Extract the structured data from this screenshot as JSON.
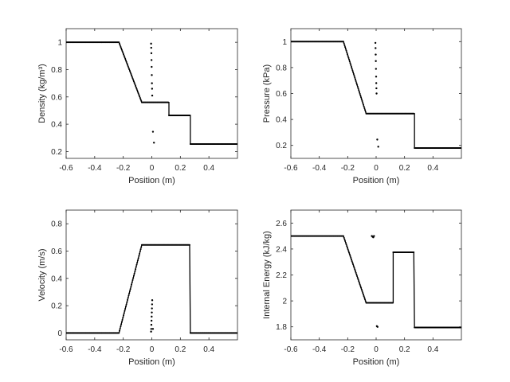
{
  "chart_data": [
    {
      "type": "line",
      "title": "",
      "xlabel": "Position (m)",
      "ylabel": "Density (kg/m³)",
      "xlim": [
        -0.6,
        0.6
      ],
      "ylim": [
        0.15,
        1.1
      ],
      "xticks": [
        -0.6,
        -0.4,
        -0.2,
        0,
        0.2,
        0.4
      ],
      "yticks": [
        0.2,
        0.4,
        0.6,
        0.8,
        1
      ],
      "xtick_labels": [
        "-0.6",
        "-0.4",
        "-0.2",
        "0",
        "0.2",
        "0.4"
      ],
      "ytick_labels": [
        "0.2",
        "0.4",
        "0.6",
        "0.8",
        "1"
      ],
      "series": [
        {
          "style": "line",
          "x": [
            -0.6,
            -0.23,
            -0.07,
            0.12,
            0.12,
            0.27,
            0.27,
            0.6
          ],
          "y": [
            1.0,
            1.0,
            0.56,
            0.56,
            0.465,
            0.465,
            0.255,
            0.255
          ]
        },
        {
          "style": "dots",
          "x": [
            -0.005,
            -0.004,
            -0.003,
            -0.002,
            -0.001,
            0.0,
            0.001,
            0.002,
            0.003,
            0.008,
            0.015
          ],
          "y": [
            0.99,
            0.96,
            0.92,
            0.87,
            0.82,
            0.76,
            0.7,
            0.66,
            0.61,
            0.345,
            0.265
          ]
        }
      ]
    },
    {
      "type": "line",
      "title": "",
      "xlabel": "Position (m)",
      "ylabel": "Pressure (kPa)",
      "xlim": [
        -0.6,
        0.6
      ],
      "ylim": [
        0.1,
        1.1
      ],
      "xticks": [
        -0.6,
        -0.4,
        -0.2,
        0,
        0.2,
        0.4
      ],
      "yticks": [
        0.2,
        0.4,
        0.6,
        0.8,
        1
      ],
      "xtick_labels": [
        "-0.6",
        "-0.4",
        "-0.2",
        "0",
        "0.2",
        "0.4"
      ],
      "ytick_labels": [
        "0.2",
        "0.4",
        "0.6",
        "0.8",
        "1"
      ],
      "series": [
        {
          "style": "line",
          "x": [
            -0.6,
            -0.23,
            -0.07,
            0.27,
            0.27,
            0.6
          ],
          "y": [
            1.0,
            1.0,
            0.445,
            0.445,
            0.18,
            0.18
          ]
        },
        {
          "style": "dots",
          "x": [
            -0.005,
            -0.004,
            -0.003,
            -0.002,
            -0.001,
            0.0,
            0.001,
            0.002,
            0.003,
            0.008,
            0.015
          ],
          "y": [
            0.99,
            0.95,
            0.9,
            0.85,
            0.79,
            0.73,
            0.68,
            0.64,
            0.6,
            0.245,
            0.19
          ]
        }
      ]
    },
    {
      "type": "line",
      "title": "",
      "xlabel": "Position (m)",
      "ylabel": "Velocity (m/s)",
      "xlim": [
        -0.6,
        0.6
      ],
      "ylim": [
        -0.05,
        0.9
      ],
      "xticks": [
        -0.6,
        -0.4,
        -0.2,
        0,
        0.2,
        0.4
      ],
      "yticks": [
        0,
        0.2,
        0.4,
        0.6,
        0.8
      ],
      "xtick_labels": [
        "-0.6",
        "-0.4",
        "-0.2",
        "0",
        "0.2",
        "0.4"
      ],
      "ytick_labels": [
        "0",
        "0.2",
        "0.4",
        "0.6",
        "0.8"
      ],
      "series": [
        {
          "style": "line",
          "x": [
            -0.6,
            -0.23,
            -0.07,
            0.265,
            0.27,
            0.6
          ],
          "y": [
            0.0,
            0.0,
            0.645,
            0.645,
            0.0,
            0.0
          ]
        },
        {
          "style": "dots",
          "x": [
            -0.005,
            -0.004,
            -0.003,
            -0.002,
            -0.001,
            0.0,
            0.001,
            0.002,
            0.003,
            0.008
          ],
          "y": [
            0.01,
            0.03,
            0.06,
            0.09,
            0.12,
            0.15,
            0.18,
            0.21,
            0.24,
            0.03
          ]
        }
      ]
    },
    {
      "type": "line",
      "title": "",
      "xlabel": "Position (m)",
      "ylabel": "Internal Energy (kJ/kg)",
      "xlim": [
        -0.6,
        0.6
      ],
      "ylim": [
        1.7,
        2.7
      ],
      "xticks": [
        -0.6,
        -0.4,
        -0.2,
        0,
        0.2,
        0.4
      ],
      "yticks": [
        1.8,
        2.0,
        2.2,
        2.4,
        2.6
      ],
      "xtick_labels": [
        "-0.6",
        "-0.4",
        "-0.2",
        "0",
        "0.2",
        "0.4"
      ],
      "ytick_labels": [
        "1.8",
        "2",
        "2.2",
        "2.4",
        "2.6"
      ],
      "series": [
        {
          "style": "line",
          "x": [
            -0.6,
            -0.23,
            -0.07,
            0.12,
            0.12,
            0.265,
            0.27,
            0.6
          ],
          "y": [
            2.5,
            2.5,
            1.985,
            1.985,
            2.375,
            2.375,
            1.795,
            1.795
          ]
        },
        {
          "style": "dots",
          "x": [
            -0.03,
            -0.025,
            -0.02,
            -0.015,
            0.005,
            0.01
          ],
          "y": [
            2.5,
            2.495,
            2.49,
            2.5,
            1.805,
            1.8
          ]
        }
      ]
    }
  ]
}
